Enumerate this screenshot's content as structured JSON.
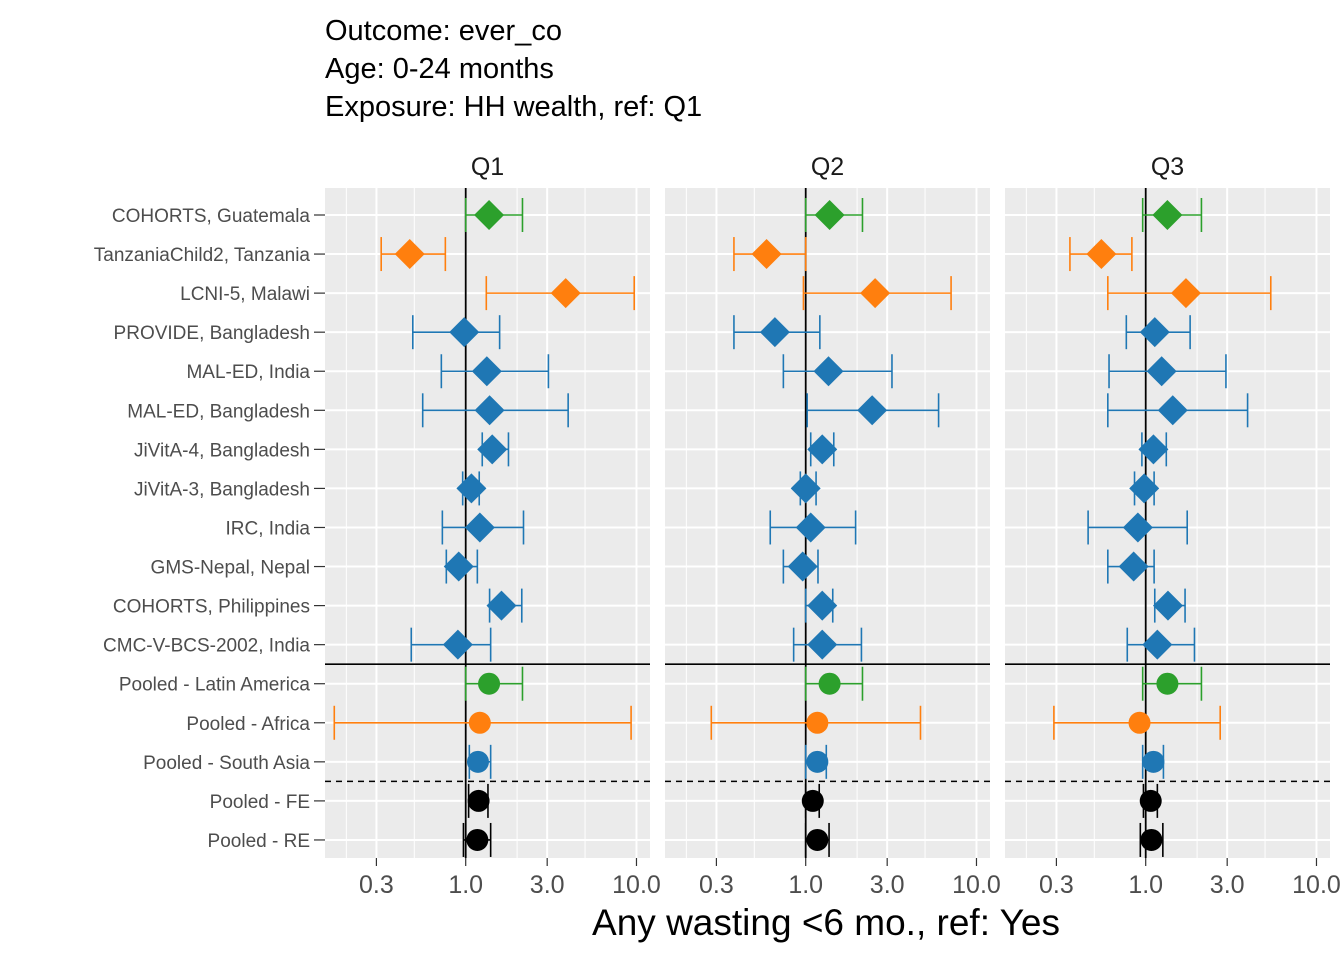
{
  "chart_data": {
    "type": "forest",
    "title_lines": [
      "Outcome: ever_co",
      "Age: 0-24 months",
      "Exposure: HH wealth, ref: Q1"
    ],
    "xlabel": "Any wasting  <6 mo., ref: Yes",
    "ylabel": "",
    "x_scale": "log",
    "xlim": [
      0.15,
      12
    ],
    "x_ticks": [
      0.3,
      1.0,
      3.0,
      10.0
    ],
    "x_tick_labels": [
      "0.3",
      "1.0",
      "3.0",
      "10.0"
    ],
    "reference_line": 1.0,
    "grid": true,
    "legend": "none",
    "colors": {
      "latin_america": "#2ca02c",
      "africa": "#ff7f0e",
      "south_asia": "#1f77b4",
      "pooled": "#000000",
      "panel_bg": "#ebebeb",
      "gridline": "#ffffff"
    },
    "rows": [
      {
        "label": "COHORTS, Guatemala",
        "region": "latin_america",
        "marker": "diamond"
      },
      {
        "label": "TanzaniaChild2, Tanzania",
        "region": "africa",
        "marker": "diamond"
      },
      {
        "label": "LCNI-5, Malawi",
        "region": "africa",
        "marker": "diamond"
      },
      {
        "label": "PROVIDE, Bangladesh",
        "region": "south_asia",
        "marker": "diamond"
      },
      {
        "label": "MAL-ED, India",
        "region": "south_asia",
        "marker": "diamond"
      },
      {
        "label": "MAL-ED, Bangladesh",
        "region": "south_asia",
        "marker": "diamond"
      },
      {
        "label": "JiVitA-4, Bangladesh",
        "region": "south_asia",
        "marker": "diamond"
      },
      {
        "label": "JiVitA-3, Bangladesh",
        "region": "south_asia",
        "marker": "diamond"
      },
      {
        "label": "IRC, India",
        "region": "south_asia",
        "marker": "diamond"
      },
      {
        "label": "GMS-Nepal, Nepal",
        "region": "south_asia",
        "marker": "diamond"
      },
      {
        "label": "COHORTS, Philippines",
        "region": "south_asia",
        "marker": "diamond"
      },
      {
        "label": "CMC-V-BCS-2002, India",
        "region": "south_asia",
        "marker": "diamond"
      },
      {
        "label": "Pooled - Latin America",
        "region": "latin_america",
        "marker": "circle"
      },
      {
        "label": "Pooled - Africa",
        "region": "africa",
        "marker": "circle"
      },
      {
        "label": "Pooled - South Asia",
        "region": "south_asia",
        "marker": "circle"
      },
      {
        "label": "Pooled - FE",
        "region": "pooled",
        "marker": "circle"
      },
      {
        "label": "Pooled - RE",
        "region": "pooled",
        "marker": "circle"
      }
    ],
    "panels": [
      {
        "name": "Q1",
        "estimates": [
          1.37,
          0.47,
          3.85,
          0.98,
          1.33,
          1.38,
          1.43,
          1.08,
          1.21,
          0.91,
          1.62,
          0.9,
          1.37,
          1.21,
          1.18,
          1.19,
          1.17
        ],
        "lower": [
          1.0,
          0.32,
          1.32,
          0.49,
          0.72,
          0.56,
          1.25,
          0.96,
          0.73,
          0.77,
          1.38,
          0.48,
          1.0,
          0.17,
          1.05,
          1.04,
          0.97
        ],
        "upper": [
          2.15,
          0.76,
          9.7,
          1.58,
          3.05,
          3.98,
          1.78,
          1.2,
          2.18,
          1.17,
          2.13,
          1.4,
          2.15,
          9.3,
          1.4,
          1.35,
          1.4
        ]
      },
      {
        "name": "Q2",
        "estimates": [
          1.38,
          0.59,
          2.55,
          0.66,
          1.36,
          2.45,
          1.25,
          1.0,
          1.07,
          0.96,
          1.25,
          1.25,
          1.38,
          1.17,
          1.17,
          1.1,
          1.17
        ],
        "lower": [
          1.0,
          0.38,
          0.97,
          0.38,
          0.74,
          1.02,
          1.07,
          0.93,
          0.62,
          0.74,
          1.0,
          0.85,
          1.0,
          0.28,
          1.0,
          1.0,
          1.0
        ],
        "upper": [
          2.15,
          1.0,
          7.1,
          1.21,
          3.2,
          6.0,
          1.46,
          1.15,
          1.96,
          1.18,
          1.44,
          2.12,
          2.15,
          4.7,
          1.32,
          1.2,
          1.37
        ]
      },
      {
        "name": "Q3",
        "estimates": [
          1.34,
          0.55,
          1.72,
          1.13,
          1.24,
          1.44,
          1.11,
          0.98,
          0.9,
          0.85,
          1.35,
          1.17,
          1.34,
          0.92,
          1.11,
          1.07,
          1.08
        ],
        "lower": [
          0.96,
          0.36,
          0.6,
          0.77,
          0.61,
          0.6,
          0.95,
          0.86,
          0.46,
          0.6,
          1.13,
          0.78,
          0.96,
          0.29,
          0.96,
          0.97,
          0.93
        ],
        "upper": [
          2.12,
          0.83,
          5.4,
          1.82,
          2.95,
          3.95,
          1.32,
          1.12,
          1.75,
          1.12,
          1.7,
          1.93,
          2.12,
          2.73,
          1.27,
          1.17,
          1.26
        ]
      }
    ]
  }
}
